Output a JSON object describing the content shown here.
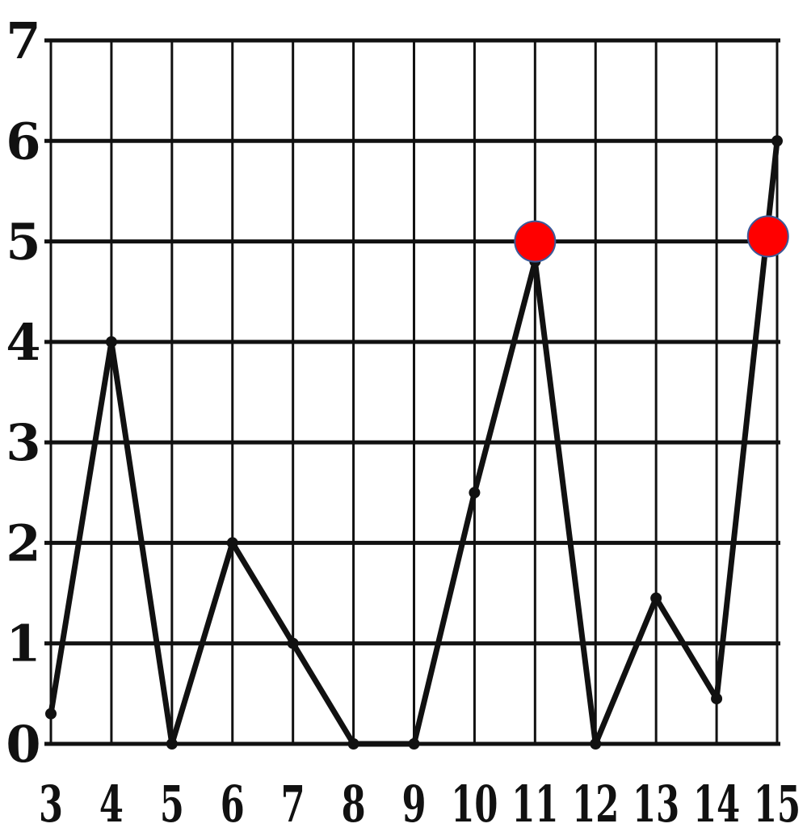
{
  "chart_data": {
    "type": "line",
    "x": [
      3,
      4,
      5,
      6,
      7,
      8,
      9,
      10,
      11,
      12,
      13,
      14,
      15
    ],
    "series": [
      {
        "values": [
          0.3,
          4.0,
          0.0,
          2.0,
          1.0,
          0.0,
          0.0,
          2.5,
          4.8,
          0.0,
          1.45,
          0.45,
          6.0
        ]
      }
    ],
    "highlights": [
      {
        "x": 11,
        "y": 5.0
      },
      {
        "x": 14.85,
        "y": 5.05
      }
    ],
    "x_ticks": [
      "3",
      "4",
      "5",
      "6",
      "7",
      "8",
      "9",
      "10",
      "11",
      "12",
      "13",
      "14",
      "15"
    ],
    "y_ticks": [
      "0",
      "1",
      "2",
      "3",
      "4",
      "5",
      "6",
      "7"
    ],
    "xlim": [
      3,
      15
    ],
    "ylim": [
      0,
      7
    ],
    "grid": true,
    "title": "",
    "xlabel": "",
    "ylabel": "",
    "colors": {
      "line": "#111111",
      "grid": "#111111",
      "highlight": "#ff0000",
      "highlight_stroke": "#3a5a9a"
    }
  }
}
